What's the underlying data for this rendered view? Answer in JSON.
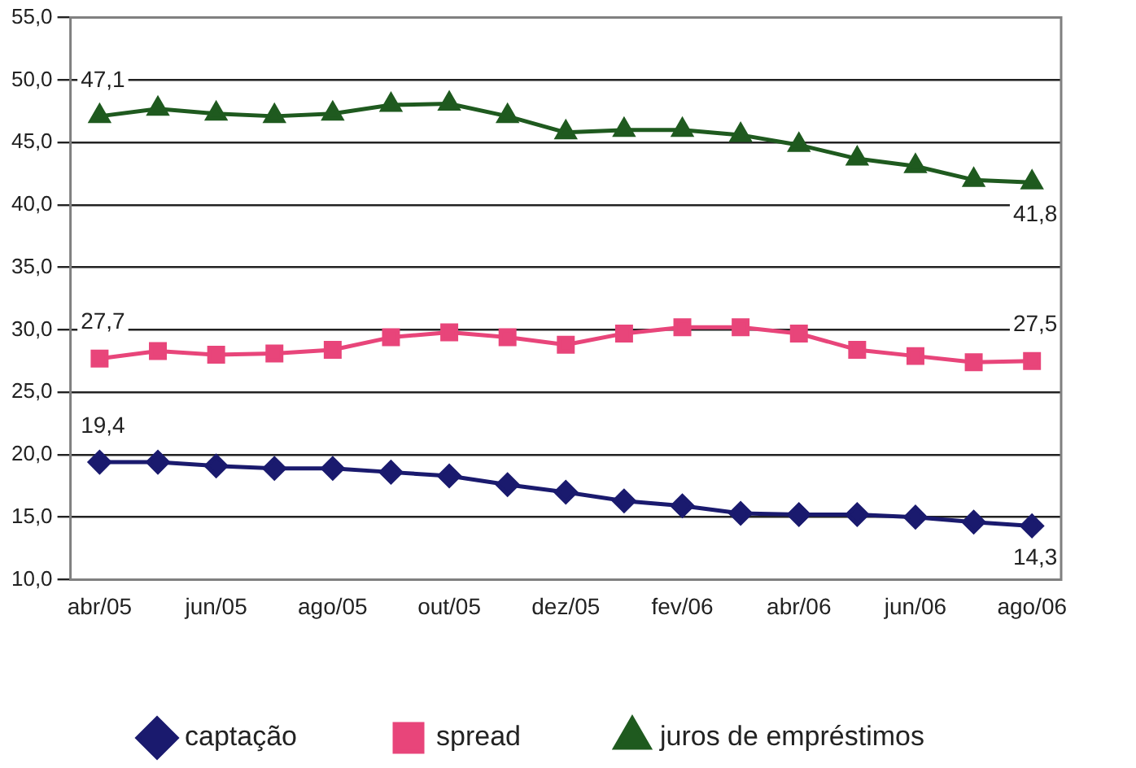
{
  "chart_data": {
    "type": "line",
    "categories": [
      "abr/05",
      null,
      "jun/05",
      null,
      "ago/05",
      null,
      "out/05",
      null,
      "dez/05",
      null,
      "fev/06",
      null,
      "abr/06",
      null,
      "jun/06",
      null,
      "ago/06"
    ],
    "series": [
      {
        "name": "captação",
        "color": "#1a1a6e",
        "marker": "diamond",
        "values": [
          19.4,
          19.4,
          19.1,
          18.9,
          18.9,
          18.6,
          18.3,
          17.6,
          17.0,
          16.3,
          15.9,
          15.3,
          15.2,
          15.2,
          15.0,
          14.6,
          14.3
        ],
        "value_labels": [
          "19,4",
          null,
          null,
          null,
          null,
          null,
          null,
          null,
          null,
          null,
          null,
          null,
          null,
          null,
          null,
          null,
          "14,3"
        ]
      },
      {
        "name": "spread",
        "color": "#e8457a",
        "marker": "square",
        "values": [
          27.7,
          28.3,
          28.0,
          28.1,
          28.4,
          29.4,
          29.8,
          29.4,
          28.8,
          29.7,
          30.2,
          30.2,
          29.7,
          28.4,
          27.9,
          27.4,
          27.5
        ],
        "value_labels": [
          "27,7",
          null,
          null,
          null,
          null,
          null,
          null,
          null,
          null,
          null,
          null,
          null,
          null,
          null,
          null,
          null,
          "27,5"
        ]
      },
      {
        "name": "juros de empréstimos",
        "color": "#1f5a1f",
        "marker": "triangle",
        "values": [
          47.1,
          47.7,
          47.3,
          47.1,
          47.3,
          48.0,
          48.1,
          47.1,
          45.8,
          46.0,
          46.0,
          45.6,
          44.8,
          43.7,
          43.1,
          42.0,
          41.8
        ],
        "value_labels": [
          "47,1",
          null,
          null,
          null,
          null,
          null,
          null,
          null,
          null,
          null,
          null,
          null,
          null,
          null,
          null,
          null,
          "41,8"
        ]
      }
    ],
    "ylim": [
      10,
      55
    ],
    "yticks": [
      {
        "value": 10,
        "label": "10,0"
      },
      {
        "value": 15,
        "label": "15,0"
      },
      {
        "value": 20,
        "label": "20,0"
      },
      {
        "value": 25,
        "label": "25,0"
      },
      {
        "value": 30,
        "label": "30,0"
      },
      {
        "value": 35,
        "label": "35,0"
      },
      {
        "value": 40,
        "label": "40,0"
      },
      {
        "value": 45,
        "label": "45,0"
      },
      {
        "value": 50,
        "label": "50,0"
      },
      {
        "value": 55,
        "label": "55,0"
      }
    ],
    "grid": "y",
    "legend": "bottom",
    "line_style": "solid"
  }
}
